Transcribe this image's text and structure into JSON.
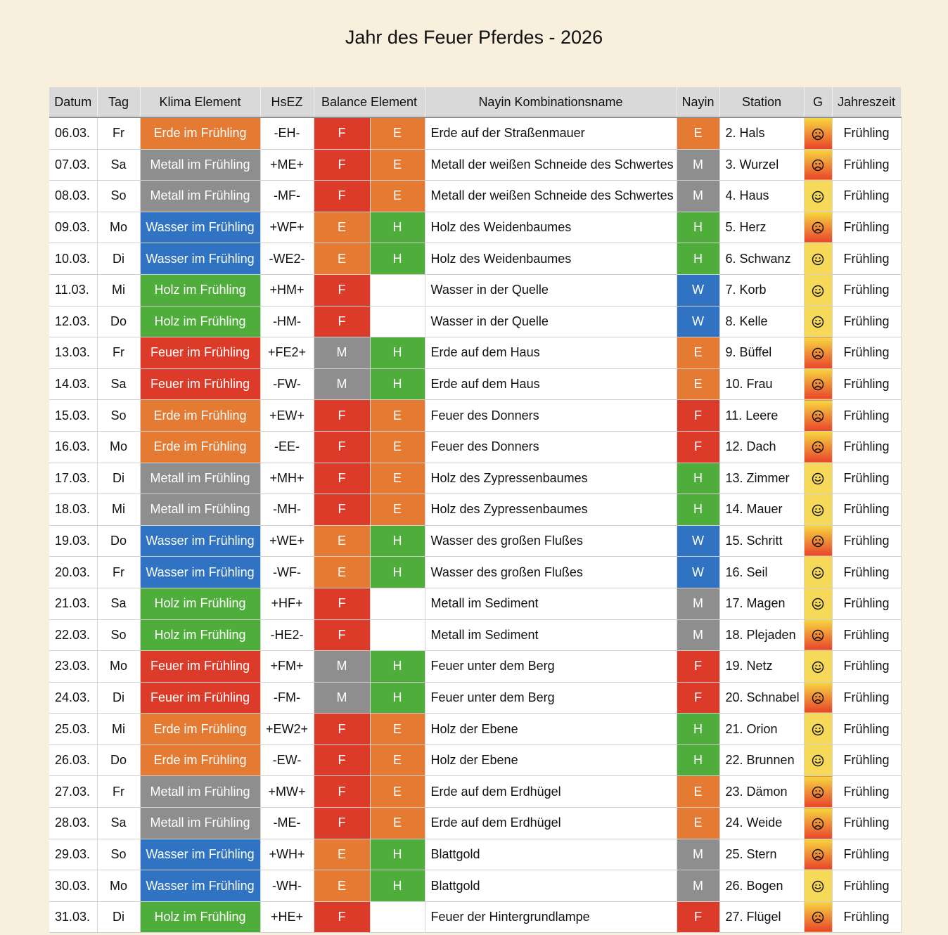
{
  "title": "Jahr des Feuer Pferdes - 2026",
  "colors": {
    "E": "#e57a33",
    "M": "#8e8e8e",
    "W": "#2f73c2",
    "H": "#4fae3b",
    "F": "#dd3b2a",
    "good": "#f7d95a",
    "bad": "#e8452b"
  },
  "headers": [
    "Datum",
    "Tag",
    "Klima Element",
    "HsEZ",
    "Balance Element",
    "Nayin Kombinationsname",
    "Nayin",
    "Station",
    "G",
    "Jahreszeit"
  ],
  "rows": [
    {
      "datum": "06.03.",
      "tag": "Fr",
      "klima": "Erde im Frühling",
      "klima_el": "E",
      "hsez": "-EH-",
      "b1": "F",
      "b2": "E",
      "nayin_name": "Erde auf der Straßenmauer",
      "nayin": "E",
      "station": "2. Hals",
      "g": "bad",
      "g_icon": "frown-icon",
      "jz": "Frühling"
    },
    {
      "datum": "07.03.",
      "tag": "Sa",
      "klima": "Metall im Frühling",
      "klima_el": "M",
      "hsez": "+ME+",
      "b1": "F",
      "b2": "E",
      "nayin_name": "Metall der weißen Schneide des Schwertes",
      "nayin": "M",
      "station": "3. Wurzel",
      "g": "bad",
      "g_icon": "frown-icon",
      "jz": "Frühling"
    },
    {
      "datum": "08.03.",
      "tag": "So",
      "klima": "Metall im Frühling",
      "klima_el": "M",
      "hsez": "-MF-",
      "b1": "F",
      "b2": "E",
      "nayin_name": "Metall der weißen Schneide des Schwertes",
      "nayin": "M",
      "station": "4. Haus",
      "g": "good",
      "g_icon": "smile-icon",
      "jz": "Frühling"
    },
    {
      "datum": "09.03.",
      "tag": "Mo",
      "klima": "Wasser im Frühling",
      "klima_el": "W",
      "hsez": "+WF+",
      "b1": "E",
      "b2": "H",
      "nayin_name": "Holz des Weidenbaumes",
      "nayin": "H",
      "station": "5. Herz",
      "g": "bad",
      "g_icon": "frown-icon",
      "jz": "Frühling"
    },
    {
      "datum": "10.03.",
      "tag": "Di",
      "klima": "Wasser im Frühling",
      "klima_el": "W",
      "hsez": "-WE2-",
      "b1": "E",
      "b2": "H",
      "nayin_name": "Holz des Weidenbaumes",
      "nayin": "H",
      "station": "6. Schwanz",
      "g": "good",
      "g_icon": "smile-icon",
      "jz": "Frühling"
    },
    {
      "datum": "11.03.",
      "tag": "Mi",
      "klima": "Holz im Frühling",
      "klima_el": "H",
      "hsez": "+HM+",
      "b1": "F",
      "b2": "",
      "nayin_name": "Wasser in der Quelle",
      "nayin": "W",
      "station": "7. Korb",
      "g": "good",
      "g_icon": "smile-icon",
      "jz": "Frühling"
    },
    {
      "datum": "12.03.",
      "tag": "Do",
      "klima": "Holz im Frühling",
      "klima_el": "H",
      "hsez": "-HM-",
      "b1": "F",
      "b2": "",
      "nayin_name": "Wasser in der Quelle",
      "nayin": "W",
      "station": "8. Kelle",
      "g": "good",
      "g_icon": "smile-icon",
      "jz": "Frühling"
    },
    {
      "datum": "13.03.",
      "tag": "Fr",
      "klima": "Feuer im Frühling",
      "klima_el": "F",
      "hsez": "+FE2+",
      "b1": "M",
      "b2": "H",
      "nayin_name": "Erde auf dem Haus",
      "nayin": "E",
      "station": "9. Büffel",
      "g": "bad",
      "g_icon": "frown-icon",
      "jz": "Frühling"
    },
    {
      "datum": "14.03.",
      "tag": "Sa",
      "klima": "Feuer im Frühling",
      "klima_el": "F",
      "hsez": "-FW-",
      "b1": "M",
      "b2": "H",
      "nayin_name": "Erde auf dem Haus",
      "nayin": "E",
      "station": "10. Frau",
      "g": "bad",
      "g_icon": "frown-icon",
      "jz": "Frühling"
    },
    {
      "datum": "15.03.",
      "tag": "So",
      "klima": "Erde im Frühling",
      "klima_el": "E",
      "hsez": "+EW+",
      "b1": "F",
      "b2": "E",
      "nayin_name": "Feuer des Donners",
      "nayin": "F",
      "station": "11. Leere",
      "g": "bad",
      "g_icon": "frown-icon",
      "jz": "Frühling"
    },
    {
      "datum": "16.03.",
      "tag": "Mo",
      "klima": "Erde im Frühling",
      "klima_el": "E",
      "hsez": "-EE-",
      "b1": "F",
      "b2": "E",
      "nayin_name": "Feuer des Donners",
      "nayin": "F",
      "station": "12. Dach",
      "g": "bad",
      "g_icon": "frown-icon",
      "jz": "Frühling"
    },
    {
      "datum": "17.03.",
      "tag": "Di",
      "klima": "Metall im Frühling",
      "klima_el": "M",
      "hsez": "+MH+",
      "b1": "F",
      "b2": "E",
      "nayin_name": "Holz des Zypressenbaumes",
      "nayin": "H",
      "station": "13. Zimmer",
      "g": "good",
      "g_icon": "smile-icon",
      "jz": "Frühling"
    },
    {
      "datum": "18.03.",
      "tag": "Mi",
      "klima": "Metall im Frühling",
      "klima_el": "M",
      "hsez": "-MH-",
      "b1": "F",
      "b2": "E",
      "nayin_name": "Holz des Zypressenbaumes",
      "nayin": "H",
      "station": "14. Mauer",
      "g": "good",
      "g_icon": "smile-icon",
      "jz": "Frühling"
    },
    {
      "datum": "19.03.",
      "tag": "Do",
      "klima": "Wasser im Frühling",
      "klima_el": "W",
      "hsez": "+WE+",
      "b1": "E",
      "b2": "H",
      "nayin_name": "Wasser des großen Flußes",
      "nayin": "W",
      "station": "15. Schritt",
      "g": "bad",
      "g_icon": "frown-icon",
      "jz": "Frühling"
    },
    {
      "datum": "20.03.",
      "tag": "Fr",
      "klima": "Wasser im Frühling",
      "klima_el": "W",
      "hsez": "-WF-",
      "b1": "E",
      "b2": "H",
      "nayin_name": "Wasser des großen Flußes",
      "nayin": "W",
      "station": "16. Seil",
      "g": "good",
      "g_icon": "smile-icon",
      "jz": "Frühling"
    },
    {
      "datum": "21.03.",
      "tag": "Sa",
      "klima": "Holz im Frühling",
      "klima_el": "H",
      "hsez": "+HF+",
      "b1": "F",
      "b2": "",
      "nayin_name": "Metall im Sediment",
      "nayin": "M",
      "station": "17. Magen",
      "g": "good",
      "g_icon": "smile-icon",
      "jz": "Frühling"
    },
    {
      "datum": "22.03.",
      "tag": "So",
      "klima": "Holz im Frühling",
      "klima_el": "H",
      "hsez": "-HE2-",
      "b1": "F",
      "b2": "",
      "nayin_name": "Metall im Sediment",
      "nayin": "M",
      "station": "18. Plejaden",
      "g": "bad",
      "g_icon": "frown-icon",
      "jz": "Frühling"
    },
    {
      "datum": "23.03.",
      "tag": "Mo",
      "klima": "Feuer im Frühling",
      "klima_el": "F",
      "hsez": "+FM+",
      "b1": "M",
      "b2": "H",
      "nayin_name": "Feuer unter dem Berg",
      "nayin": "F",
      "station": "19. Netz",
      "g": "good",
      "g_icon": "smile-icon",
      "jz": "Frühling"
    },
    {
      "datum": "24.03.",
      "tag": "Di",
      "klima": "Feuer im Frühling",
      "klima_el": "F",
      "hsez": "-FM-",
      "b1": "M",
      "b2": "H",
      "nayin_name": "Feuer unter dem Berg",
      "nayin": "F",
      "station": "20. Schnabel",
      "g": "bad",
      "g_icon": "frown-icon",
      "jz": "Frühling"
    },
    {
      "datum": "25.03.",
      "tag": "Mi",
      "klima": "Erde im Frühling",
      "klima_el": "E",
      "hsez": "+EW2+",
      "b1": "F",
      "b2": "E",
      "nayin_name": "Holz der Ebene",
      "nayin": "H",
      "station": "21. Orion",
      "g": "good",
      "g_icon": "smile-icon",
      "jz": "Frühling"
    },
    {
      "datum": "26.03.",
      "tag": "Do",
      "klima": "Erde im Frühling",
      "klima_el": "E",
      "hsez": "-EW-",
      "b1": "F",
      "b2": "E",
      "nayin_name": "Holz der Ebene",
      "nayin": "H",
      "station": "22. Brunnen",
      "g": "good",
      "g_icon": "smile-icon",
      "jz": "Frühling"
    },
    {
      "datum": "27.03.",
      "tag": "Fr",
      "klima": "Metall im Frühling",
      "klima_el": "M",
      "hsez": "+MW+",
      "b1": "F",
      "b2": "E",
      "nayin_name": "Erde auf dem Erdhügel",
      "nayin": "E",
      "station": "23. Dämon",
      "g": "bad",
      "g_icon": "frown-icon",
      "jz": "Frühling"
    },
    {
      "datum": "28.03.",
      "tag": "Sa",
      "klima": "Metall im Frühling",
      "klima_el": "M",
      "hsez": "-ME-",
      "b1": "F",
      "b2": "E",
      "nayin_name": "Erde auf dem Erdhügel",
      "nayin": "E",
      "station": "24. Weide",
      "g": "bad",
      "g_icon": "frown-icon",
      "jz": "Frühling"
    },
    {
      "datum": "29.03.",
      "tag": "So",
      "klima": "Wasser im Frühling",
      "klima_el": "W",
      "hsez": "+WH+",
      "b1": "E",
      "b2": "H",
      "nayin_name": "Blattgold",
      "nayin": "M",
      "station": "25. Stern",
      "g": "bad",
      "g_icon": "frown-icon",
      "jz": "Frühling"
    },
    {
      "datum": "30.03.",
      "tag": "Mo",
      "klima": "Wasser im Frühling",
      "klima_el": "W",
      "hsez": "-WH-",
      "b1": "E",
      "b2": "H",
      "nayin_name": "Blattgold",
      "nayin": "M",
      "station": "26. Bogen",
      "g": "good",
      "g_icon": "smile-icon",
      "jz": "Frühling"
    },
    {
      "datum": "31.03.",
      "tag": "Di",
      "klima": "Holz im Frühling",
      "klima_el": "H",
      "hsez": "+HE+",
      "b1": "F",
      "b2": "",
      "nayin_name": "Feuer der Hintergrundlampe",
      "nayin": "F",
      "station": "27. Flügel",
      "g": "bad",
      "g_icon": "frown-icon",
      "jz": "Frühling"
    }
  ]
}
